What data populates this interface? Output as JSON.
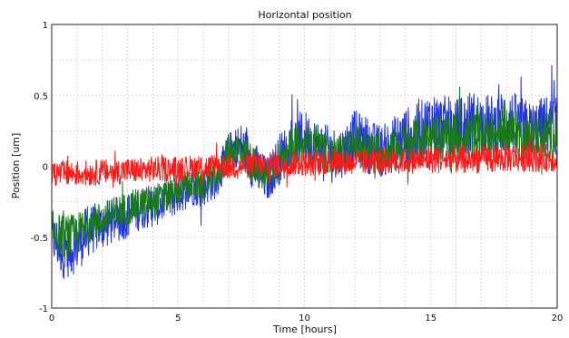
{
  "chart_data": {
    "type": "line",
    "title": "Horizontal position",
    "xlabel": "Time [hours]",
    "ylabel": "Position [um]",
    "xlim": [
      0,
      20
    ],
    "ylim": [
      -1,
      1
    ],
    "xticks": [
      0,
      5,
      10,
      15,
      20
    ],
    "yticks": [
      -1,
      -0.5,
      0,
      0.5,
      1
    ],
    "xtick_labels": [
      "0",
      "5",
      "10",
      "15",
      "20"
    ],
    "ytick_labels": [
      "-1",
      "-0.5",
      "0",
      "0.5",
      "1"
    ],
    "grid": true,
    "legend": "none",
    "series": [
      {
        "color": "#2233dd",
        "x": [
          0,
          0.5,
          1,
          1.5,
          2,
          2.5,
          3,
          3.5,
          4,
          4.5,
          5,
          5.5,
          6,
          6.5,
          7,
          7.5,
          8,
          8.5,
          9,
          9.5,
          10,
          10.5,
          11,
          11.5,
          12,
          12.5,
          13,
          13.5,
          14,
          14.5,
          15,
          15.5,
          16,
          16.5,
          17,
          17.5,
          18,
          18.5,
          19,
          19.5,
          20
        ],
        "center": [
          -0.5,
          -0.6,
          -0.55,
          -0.45,
          -0.42,
          -0.38,
          -0.35,
          -0.3,
          -0.28,
          -0.25,
          -0.2,
          -0.15,
          -0.15,
          -0.1,
          0.1,
          0.15,
          0.0,
          -0.1,
          0.05,
          0.15,
          0.2,
          0.15,
          0.1,
          0.1,
          0.2,
          0.15,
          0.1,
          0.15,
          0.2,
          0.22,
          0.3,
          0.28,
          0.25,
          0.3,
          0.3,
          0.28,
          0.32,
          0.28,
          0.25,
          0.28,
          0.3
        ],
        "amplitude": [
          0.18,
          0.2,
          0.2,
          0.18,
          0.17,
          0.16,
          0.16,
          0.15,
          0.15,
          0.14,
          0.14,
          0.13,
          0.13,
          0.13,
          0.14,
          0.16,
          0.18,
          0.16,
          0.18,
          0.2,
          0.2,
          0.18,
          0.18,
          0.18,
          0.2,
          0.2,
          0.18,
          0.2,
          0.22,
          0.22,
          0.24,
          0.22,
          0.22,
          0.24,
          0.22,
          0.22,
          0.24,
          0.22,
          0.2,
          0.22,
          0.22
        ]
      },
      {
        "color": "#1a7a1a",
        "x": [
          0,
          0.5,
          1,
          1.5,
          2,
          2.5,
          3,
          3.5,
          4,
          4.5,
          5,
          5.5,
          6,
          6.5,
          7,
          7.5,
          8,
          8.5,
          9,
          9.5,
          10,
          10.5,
          11,
          11.5,
          12,
          12.5,
          13,
          13.5,
          14,
          14.5,
          15,
          15.5,
          16,
          16.5,
          17,
          17.5,
          18,
          18.5,
          19,
          19.5,
          20
        ],
        "center": [
          -0.45,
          -0.5,
          -0.48,
          -0.4,
          -0.38,
          -0.33,
          -0.3,
          -0.27,
          -0.25,
          -0.22,
          -0.18,
          -0.14,
          -0.13,
          -0.08,
          0.1,
          0.12,
          0.0,
          -0.08,
          0.05,
          0.12,
          0.15,
          0.12,
          0.08,
          0.08,
          0.15,
          0.12,
          0.08,
          0.12,
          0.15,
          0.18,
          0.22,
          0.2,
          0.2,
          0.22,
          0.22,
          0.2,
          0.25,
          0.22,
          0.2,
          0.22,
          0.22
        ],
        "amplitude": [
          0.14,
          0.15,
          0.15,
          0.14,
          0.13,
          0.12,
          0.12,
          0.12,
          0.12,
          0.11,
          0.11,
          0.1,
          0.1,
          0.1,
          0.12,
          0.13,
          0.14,
          0.13,
          0.14,
          0.15,
          0.15,
          0.14,
          0.14,
          0.14,
          0.15,
          0.15,
          0.14,
          0.15,
          0.16,
          0.16,
          0.18,
          0.17,
          0.17,
          0.18,
          0.17,
          0.17,
          0.18,
          0.17,
          0.16,
          0.17,
          0.17
        ]
      },
      {
        "color": "#ff1a1a",
        "x": [
          0,
          0.5,
          1,
          1.5,
          2,
          2.5,
          3,
          3.5,
          4,
          4.5,
          5,
          5.5,
          6,
          6.5,
          7,
          7.5,
          8,
          8.5,
          9,
          9.5,
          10,
          10.5,
          11,
          11.5,
          12,
          12.5,
          13,
          13.5,
          14,
          14.5,
          15,
          15.5,
          16,
          16.5,
          17,
          17.5,
          18,
          18.5,
          19,
          19.5,
          20
        ],
        "center": [
          -0.05,
          -0.05,
          -0.05,
          -0.05,
          -0.04,
          -0.04,
          -0.03,
          -0.03,
          -0.02,
          -0.02,
          -0.02,
          -0.01,
          -0.01,
          0.0,
          0.0,
          0.0,
          0.01,
          0.01,
          0.01,
          0.02,
          0.02,
          0.02,
          0.03,
          0.03,
          0.03,
          0.03,
          0.04,
          0.04,
          0.04,
          0.04,
          0.05,
          0.05,
          0.05,
          0.05,
          0.05,
          0.05,
          0.06,
          0.06,
          0.06,
          0.06,
          0.06
        ],
        "amplitude": [
          0.09,
          0.09,
          0.09,
          0.09,
          0.09,
          0.09,
          0.09,
          0.09,
          0.09,
          0.09,
          0.09,
          0.09,
          0.09,
          0.09,
          0.09,
          0.09,
          0.09,
          0.09,
          0.09,
          0.09,
          0.09,
          0.09,
          0.09,
          0.09,
          0.09,
          0.09,
          0.09,
          0.09,
          0.09,
          0.09,
          0.1,
          0.1,
          0.1,
          0.1,
          0.1,
          0.1,
          0.1,
          0.1,
          0.1,
          0.1,
          0.1
        ]
      }
    ]
  }
}
